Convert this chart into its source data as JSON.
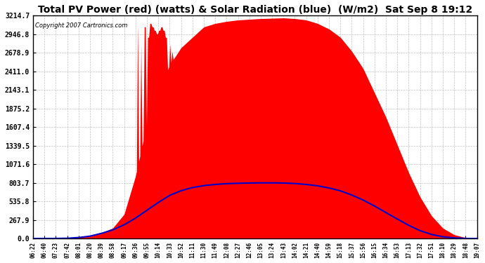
{
  "title": "Total PV Power (red) (watts) & Solar Radiation (blue)  (W/m2)  Sat Sep 8 19:12",
  "copyright": "Copyright 2007 Cartronics.com",
  "ymax": 3214.7,
  "yticks": [
    0.0,
    267.9,
    535.8,
    803.7,
    1071.6,
    1339.5,
    1607.4,
    1875.2,
    2143.1,
    2411.0,
    2678.9,
    2946.8,
    3214.7
  ],
  "bg_color": "#ffffff",
  "plot_bg": "#ffffff",
  "grid_color": "#aaaaaa",
  "red_color": "#ff0000",
  "blue_color": "#0000cc",
  "xtick_labels": [
    "06:22",
    "06:40",
    "07:23",
    "07:42",
    "08:01",
    "08:20",
    "08:39",
    "08:58",
    "09:17",
    "09:36",
    "09:55",
    "10:14",
    "10:33",
    "10:52",
    "11:11",
    "11:30",
    "11:49",
    "12:08",
    "12:27",
    "12:46",
    "13:05",
    "13:24",
    "13:43",
    "14:02",
    "14:21",
    "14:40",
    "14:59",
    "15:18",
    "15:37",
    "15:56",
    "16:15",
    "16:34",
    "16:53",
    "17:13",
    "17:32",
    "17:51",
    "18:10",
    "18:29",
    "18:48",
    "19:07"
  ],
  "pv_power": [
    0,
    0,
    2,
    5,
    15,
    30,
    80,
    150,
    350,
    900,
    1650,
    2100,
    2500,
    2750,
    2900,
    3050,
    3100,
    3130,
    3150,
    3160,
    3170,
    3175,
    3180,
    3170,
    3150,
    3100,
    3020,
    2900,
    2700,
    2450,
    2100,
    1750,
    1350,
    950,
    600,
    330,
    150,
    55,
    12,
    2
  ],
  "pv_spikes": [
    0,
    0,
    0,
    0,
    0,
    0,
    0,
    0,
    0,
    1200,
    800,
    600,
    400,
    200,
    0,
    0,
    0,
    0,
    0,
    0,
    0,
    0,
    0,
    0,
    0,
    0,
    0,
    0,
    0,
    0,
    0,
    0,
    0,
    0,
    0,
    0,
    0,
    0,
    0,
    0
  ],
  "solar_rad_raw": [
    0,
    0,
    1,
    3,
    12,
    30,
    65,
    110,
    175,
    260,
    360,
    460,
    550,
    610,
    650,
    675,
    690,
    700,
    705,
    708,
    710,
    710,
    708,
    702,
    690,
    672,
    645,
    608,
    555,
    490,
    415,
    330,
    248,
    168,
    100,
    52,
    22,
    7,
    1,
    0
  ],
  "solar_scale": 1.13,
  "figwidth": 6.9,
  "figheight": 3.75,
  "dpi": 100
}
